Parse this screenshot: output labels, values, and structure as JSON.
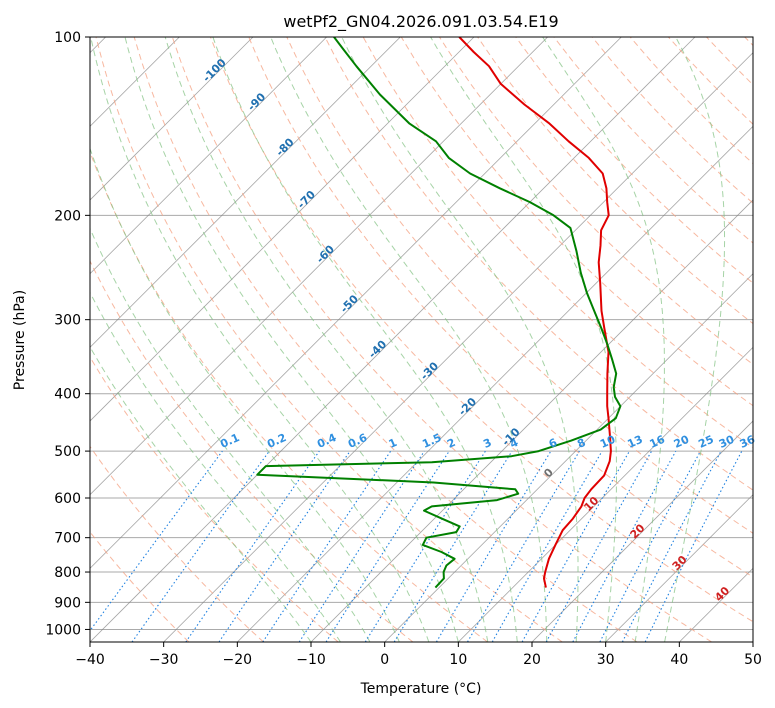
{
  "chart_data": {
    "type": "skew-t",
    "title": "wetPf2_GN04.2026.091.03.54.E19",
    "xlabel": "Temperature (°C)",
    "ylabel": "Pressure (hPa)",
    "xlim": [
      -40,
      50
    ],
    "ylim": [
      1050,
      100
    ],
    "x_ticks": [
      -40,
      -30,
      -20,
      -10,
      0,
      10,
      20,
      30,
      40,
      50
    ],
    "y_ticks": [
      100,
      200,
      300,
      400,
      500,
      600,
      700,
      800,
      900,
      1000
    ],
    "skew_x_offset_per_decade": 45,
    "colors": {
      "temperature": "#e00000",
      "dewpoint": "#008000",
      "grid": "#aaaaaa",
      "isotherm": "#808080",
      "dry_adiabat": "#f4a080",
      "moist_adiabat": "#80c080",
      "mixing_ratio": "#1e80e0",
      "isotherm_label": "#2070b0",
      "dry_adiabat_label": "#d02020",
      "mixing_label": "#3090e0"
    },
    "series": [
      {
        "name": "Temperature",
        "points": [
          [
            850,
            14.5
          ],
          [
            820,
            13.0
          ],
          [
            800,
            12.3
          ],
          [
            760,
            11.0
          ],
          [
            720,
            10.0
          ],
          [
            680,
            9.0
          ],
          [
            650,
            8.8
          ],
          [
            620,
            8.3
          ],
          [
            600,
            7.6
          ],
          [
            580,
            7.3
          ],
          [
            550,
            7.2
          ],
          [
            520,
            6.0
          ],
          [
            500,
            4.8
          ],
          [
            470,
            2.5
          ],
          [
            440,
            0.0
          ],
          [
            420,
            -1.8
          ],
          [
            400,
            -3.5
          ],
          [
            370,
            -6.2
          ],
          [
            340,
            -9.0
          ],
          [
            310,
            -12.8
          ],
          [
            290,
            -15.5
          ],
          [
            260,
            -19.5
          ],
          [
            240,
            -22.5
          ],
          [
            225,
            -24.5
          ],
          [
            212,
            -26.5
          ],
          [
            200,
            -27.5
          ],
          [
            190,
            -29.5
          ],
          [
            180,
            -31.5
          ],
          [
            170,
            -34.0
          ],
          [
            160,
            -38.0
          ],
          [
            150,
            -43.0
          ],
          [
            140,
            -48.0
          ],
          [
            130,
            -54.0
          ],
          [
            120,
            -60.0
          ],
          [
            112,
            -64.0
          ],
          [
            106,
            -68.0
          ],
          [
            100,
            -72.0
          ]
        ]
      },
      {
        "name": "Dewpoint",
        "points": [
          [
            850,
            -0.5
          ],
          [
            820,
            -0.6
          ],
          [
            800,
            -1.5
          ],
          [
            780,
            -2.0
          ],
          [
            760,
            -1.8
          ],
          [
            740,
            -4.5
          ],
          [
            720,
            -8.0
          ],
          [
            700,
            -8.5
          ],
          [
            685,
            -5.2
          ],
          [
            670,
            -5.5
          ],
          [
            650,
            -9.0
          ],
          [
            630,
            -12.5
          ],
          [
            620,
            -12.0
          ],
          [
            605,
            -4.0
          ],
          [
            590,
            -2.0
          ],
          [
            580,
            -3.0
          ],
          [
            565,
            -15.0
          ],
          [
            548,
            -40.0
          ],
          [
            530,
            -40.0
          ],
          [
            522,
            -18.0
          ],
          [
            510,
            -8.0
          ],
          [
            500,
            -5.0
          ],
          [
            480,
            -2.0
          ],
          [
            460,
            0.5
          ],
          [
            440,
            1.0
          ],
          [
            420,
            0.0
          ],
          [
            405,
            -2.0
          ],
          [
            390,
            -3.5
          ],
          [
            370,
            -5.0
          ],
          [
            350,
            -7.5
          ],
          [
            330,
            -10.2
          ],
          [
            310,
            -13.2
          ],
          [
            290,
            -16.5
          ],
          [
            270,
            -20.0
          ],
          [
            250,
            -23.5
          ],
          [
            230,
            -27.0
          ],
          [
            210,
            -31.0
          ],
          [
            200,
            -35.0
          ],
          [
            190,
            -40.0
          ],
          [
            180,
            -46.0
          ],
          [
            170,
            -52.0
          ],
          [
            160,
            -57.0
          ],
          [
            150,
            -61.0
          ],
          [
            140,
            -67.0
          ],
          [
            125,
            -75.0
          ],
          [
            112,
            -82.0
          ],
          [
            105,
            -86.0
          ],
          [
            100,
            -89.0
          ]
        ]
      }
    ],
    "isotherm_labels": [
      "-100",
      "-90",
      "-80",
      "-70",
      "-60",
      "-50",
      "-40",
      "-30",
      "-20",
      "-10",
      "0",
      "10",
      "20",
      "30",
      "40"
    ],
    "mixing_ratio_labels": [
      "0.1",
      "0.2",
      "0.4",
      "0.6",
      "1",
      "1.5",
      "2",
      "3",
      "4",
      "6",
      "8",
      "10",
      "13",
      "16",
      "20",
      "25",
      "30",
      "36"
    ]
  }
}
